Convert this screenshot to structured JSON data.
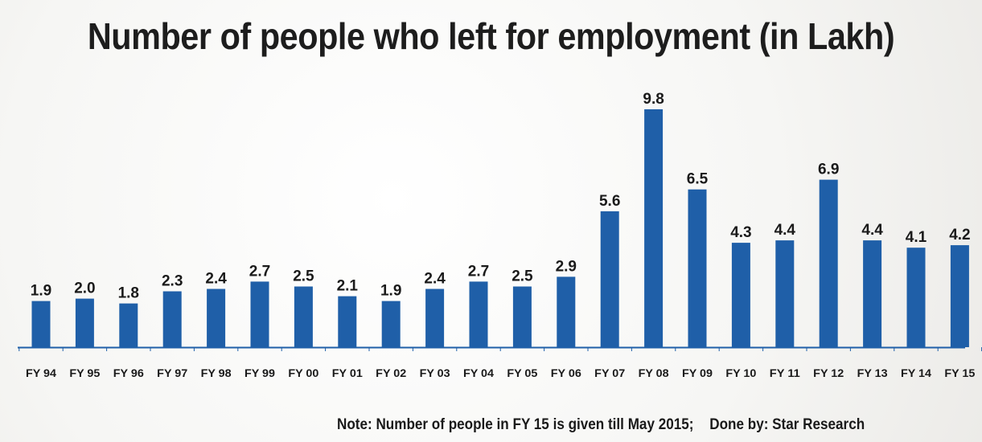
{
  "chart_data": {
    "type": "bar",
    "title": "Number of people who left for employment (in Lakh)",
    "categories": [
      "FY 94",
      "FY 95",
      "FY 96",
      "FY 97",
      "FY 98",
      "FY 99",
      "FY 00",
      "FY 01",
      "FY 02",
      "FY 03",
      "FY 04",
      "FY 05",
      "FY 06",
      "FY 07",
      "FY 08",
      "FY 09",
      "FY 10",
      "FY 11",
      "FY 12",
      "FY 13",
      "FY 14",
      "FY 15"
    ],
    "values": [
      1.9,
      2.0,
      1.8,
      2.3,
      2.4,
      2.7,
      2.5,
      2.1,
      1.9,
      2.4,
      2.7,
      2.5,
      2.9,
      5.6,
      9.8,
      6.5,
      4.3,
      4.4,
      6.9,
      4.4,
      4.1,
      4.2
    ],
    "value_labels": [
      "1.9",
      "2.0",
      "1.8",
      "2.3",
      "2.4",
      "2.7",
      "2.5",
      "2.1",
      "1.9",
      "2.4",
      "2.7",
      "2.5",
      "2.9",
      "5.6",
      "9.8",
      "6.5",
      "4.3",
      "4.4",
      "6.9",
      "4.4",
      "4.1",
      "4.2"
    ],
    "xlabel": "",
    "ylabel": "",
    "ylim": [
      0,
      9.8
    ],
    "grid": false,
    "legend": "none",
    "bar_color": "#1f5fa8",
    "axis_color": "#1f5fa8"
  },
  "footer": {
    "note": "Note: Number of people in FY 15 is given till May 2015;",
    "credit": "Done by: Star Research"
  }
}
